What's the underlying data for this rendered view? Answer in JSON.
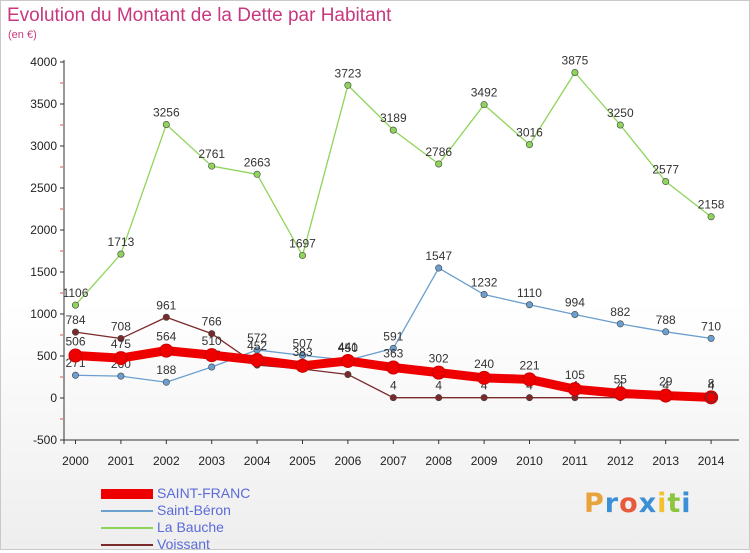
{
  "title": "Evolution du Montant de la Dette par Habitant",
  "subtitle": "(en €)",
  "logo": {
    "text": "Proxiti",
    "colors": [
      "#e8a33c",
      "#3a8fd6",
      "#e85a3c",
      "#3a8fd6",
      "#f2c12e",
      "#8cc63f",
      "#3a8fd6"
    ]
  },
  "chart_data": {
    "type": "line",
    "x": [
      "2000",
      "2001",
      "2002",
      "2003",
      "2004",
      "2005",
      "2006",
      "2007",
      "2008",
      "2009",
      "2010",
      "2011",
      "2012",
      "2013",
      "2014"
    ],
    "ylim": [
      -500,
      4000
    ],
    "yticks": [
      -500,
      0,
      500,
      1000,
      1500,
      2000,
      2500,
      3000,
      3500,
      4000
    ],
    "grid": false,
    "legend_position": "bottom-left",
    "series": [
      {
        "name": "Voissant",
        "color": "#7a2a2a",
        "width": 1.3,
        "values": [
          784,
          708,
          961,
          766,
          392,
          345,
          280,
          4,
          4,
          4,
          4,
          4,
          4,
          4,
          4
        ],
        "labels": [
          "784",
          "708",
          "961",
          "766",
          "",
          "",
          "",
          "4",
          "4",
          "4",
          "4",
          "4",
          "4",
          "4",
          "4"
        ]
      },
      {
        "name": "Saint-Béron",
        "color": "#6a9fcf",
        "width": 1.3,
        "values": [
          271,
          260,
          188,
          369,
          572,
          507,
          450,
          591,
          1547,
          1232,
          1110,
          994,
          882,
          788,
          710
        ],
        "labels": [
          "271",
          "260",
          "188",
          "369",
          "572",
          "507",
          "450",
          "591",
          "1547",
          "1232",
          "1110",
          "994",
          "882",
          "788",
          "710"
        ]
      },
      {
        "name": "La Bauche",
        "color": "#8fd45a",
        "width": 1.3,
        "values": [
          1106,
          1713,
          3256,
          2761,
          2663,
          1697,
          3723,
          3189,
          2786,
          3492,
          3016,
          3875,
          3250,
          2577,
          2158
        ],
        "labels": [
          "1106",
          "1713",
          "3256",
          "2761",
          "2663",
          "1697",
          "3723",
          "3189",
          "2786",
          "3492",
          "3016",
          "3875",
          "3250",
          "2577",
          "2158"
        ]
      },
      {
        "name": "SAINT-FRANC",
        "color": "#ee0000",
        "width": 9,
        "values": [
          506,
          475,
          564,
          510,
          452,
          383,
          441,
          363,
          302,
          240,
          221,
          105,
          55,
          29,
          8
        ],
        "labels": [
          "506",
          "475",
          "564",
          "510",
          "452",
          "383",
          "441",
          "363",
          "302",
          "240",
          "221",
          "105",
          "55",
          "29",
          "8"
        ]
      }
    ]
  }
}
